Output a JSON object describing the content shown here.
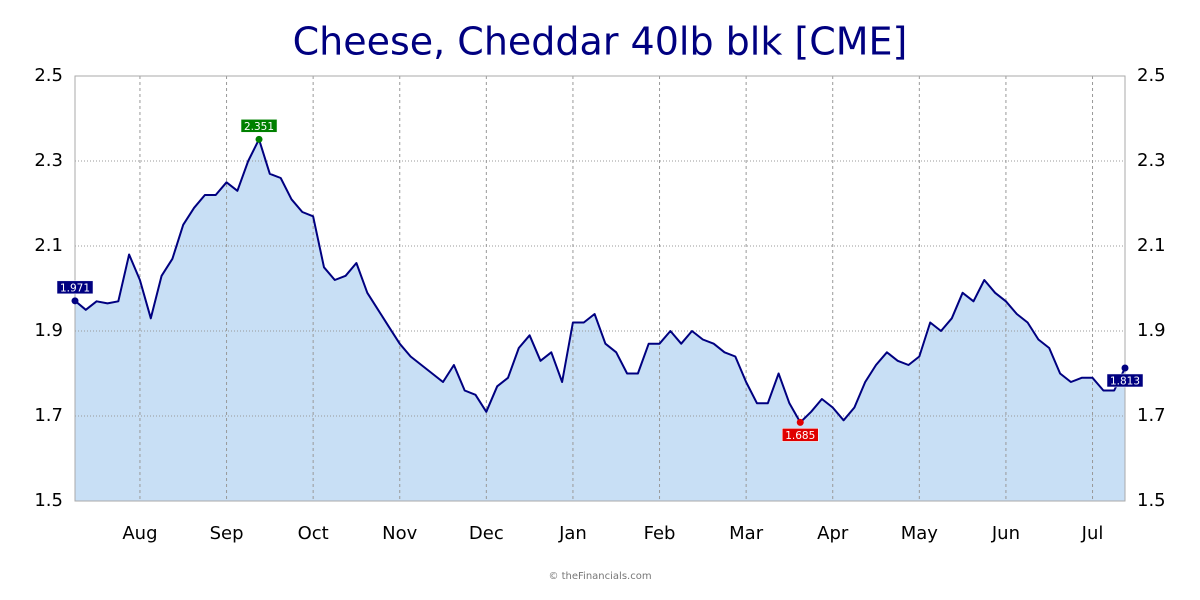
{
  "chart_data": {
    "type": "area-line",
    "title": "Cheese, Cheddar 40lb blk [CME]",
    "credit": "© theFinancials.com",
    "categories": [
      null,
      null,
      null,
      null,
      null,
      null,
      "Aug",
      null,
      null,
      null,
      null,
      null,
      null,
      null,
      "Sep",
      null,
      null,
      null,
      null,
      null,
      null,
      null,
      "Oct",
      null,
      null,
      null,
      null,
      null,
      null,
      null,
      "Nov",
      null,
      null,
      null,
      null,
      null,
      null,
      null,
      "Dec",
      null,
      null,
      null,
      null,
      null,
      null,
      null,
      "Jan",
      null,
      null,
      null,
      null,
      null,
      null,
      null,
      "Feb",
      null,
      null,
      null,
      null,
      null,
      null,
      null,
      "Mar",
      null,
      null,
      null,
      null,
      null,
      null,
      null,
      "Apr",
      null,
      null,
      null,
      null,
      null,
      null,
      null,
      "May",
      null,
      null,
      null,
      null,
      null,
      null,
      null,
      "Jun",
      null,
      null,
      null,
      null,
      null,
      null,
      null,
      "Jul",
      null,
      null,
      null
    ],
    "values": [
      1.971,
      1.95,
      1.97,
      1.965,
      1.97,
      2.08,
      2.02,
      1.93,
      2.03,
      2.07,
      2.15,
      2.19,
      2.22,
      2.22,
      2.25,
      2.23,
      2.3,
      2.351,
      2.27,
      2.26,
      2.21,
      2.18,
      2.17,
      2.05,
      2.02,
      2.03,
      2.06,
      1.99,
      1.95,
      1.91,
      1.87,
      1.84,
      1.82,
      1.8,
      1.78,
      1.82,
      1.76,
      1.75,
      1.71,
      1.77,
      1.79,
      1.86,
      1.89,
      1.83,
      1.85,
      1.78,
      1.92,
      1.92,
      1.94,
      1.87,
      1.85,
      1.8,
      1.8,
      1.87,
      1.87,
      1.9,
      1.87,
      1.9,
      1.88,
      1.87,
      1.85,
      1.84,
      1.78,
      1.73,
      1.73,
      1.8,
      1.73,
      1.685,
      1.71,
      1.74,
      1.72,
      1.69,
      1.72,
      1.78,
      1.82,
      1.85,
      1.83,
      1.82,
      1.84,
      1.92,
      1.9,
      1.93,
      1.99,
      1.97,
      2.02,
      1.99,
      1.97,
      1.94,
      1.92,
      1.88,
      1.86,
      1.8,
      1.78,
      1.79,
      1.79,
      1.76,
      1.76,
      1.813
    ],
    "color": "#000080",
    "fill": "#c8dff5",
    "max_color": "#008000",
    "min_color": "#e00000",
    "end_color": "#000080",
    "ylim": [
      1.5,
      2.5
    ],
    "yticks": [
      1.5,
      1.7,
      1.9,
      2.1,
      2.3,
      2.5
    ],
    "grid": true
  }
}
